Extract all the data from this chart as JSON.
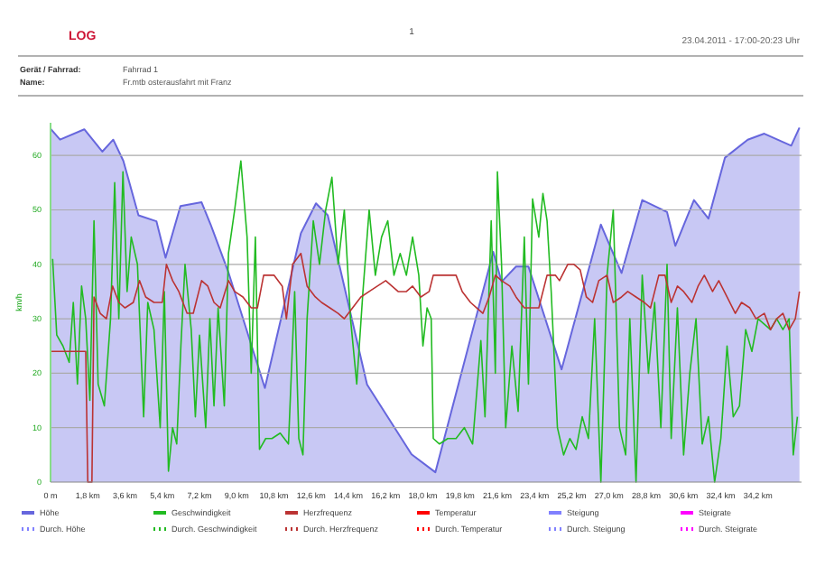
{
  "chart_data": {
    "type": "line",
    "title": "LOG",
    "annotations": [
      "1",
      "23.04.2011 - 17:00-20:23 Uhr",
      "Gerät / Fahrrad:",
      "Fahrrad 1",
      "Name:",
      "Fr.mtb osterausfahrt mit Franz"
    ],
    "ylabel": "km/h",
    "xlim": [
      0,
      36.3
    ],
    "ylim": [
      0,
      66
    ],
    "yticks": [
      0,
      10,
      20,
      30,
      40,
      50,
      60
    ],
    "xticks": [
      {
        "value": 0,
        "label": "0 m"
      },
      {
        "value": 1.8,
        "label": "1,8 km"
      },
      {
        "value": 3.6,
        "label": "3,6 km"
      },
      {
        "value": 5.4,
        "label": "5,4 km"
      },
      {
        "value": 7.2,
        "label": "7,2 km"
      },
      {
        "value": 9,
        "label": "9,0 km"
      },
      {
        "value": 10.8,
        "label": "10,8 km"
      },
      {
        "value": 12.6,
        "label": "12,6 km"
      },
      {
        "value": 14.4,
        "label": "14,4 km"
      },
      {
        "value": 16.2,
        "label": "16,2 km"
      },
      {
        "value": 18,
        "label": "18,0 km"
      },
      {
        "value": 19.8,
        "label": "19,8 km"
      },
      {
        "value": 21.6,
        "label": "21,6 km"
      },
      {
        "value": 23.4,
        "label": "23,4 km"
      },
      {
        "value": 25.2,
        "label": "25,2 km"
      },
      {
        "value": 27,
        "label": "27,0 km"
      },
      {
        "value": 28.8,
        "label": "28,8 km"
      },
      {
        "value": 30.6,
        "label": "30,6 km"
      },
      {
        "value": 32.4,
        "label": "32,4 km"
      },
      {
        "value": 34.2,
        "label": "34,2 km"
      }
    ],
    "grid": "y",
    "legend": "bottom",
    "series": [
      {
        "name": "Höhe",
        "type": "area",
        "color": "#6666dd",
        "x": [
          0,
          0.46,
          1.63,
          2.5,
          3.03,
          3.52,
          4.25,
          5.12,
          5.56,
          6.28,
          7.3,
          7.74,
          8.61,
          10.36,
          12.1,
          12.83,
          13.4,
          15.3,
          17.45,
          18.6,
          21.4,
          21.8,
          22.5,
          23.1,
          24.7,
          26.6,
          27.6,
          28.6,
          29.8,
          30.2,
          31.1,
          31.8,
          32.6,
          33.7,
          34.5,
          35.8,
          36.2
        ],
        "values": [
          64.9,
          62.9,
          64.8,
          60.7,
          62.9,
          59,
          49,
          47.9,
          41.2,
          50.7,
          51.4,
          47.3,
          38.4,
          17.3,
          45.7,
          51.2,
          49,
          17.9,
          5.1,
          1.8,
          42.3,
          36.8,
          39.6,
          39.6,
          20.7,
          47.3,
          38.4,
          51.8,
          49.6,
          43.4,
          51.8,
          48.4,
          59.6,
          62.9,
          64,
          61.8,
          65.1
        ]
      },
      {
        "name": "Geschwindigkeit",
        "color": "#22bb22",
        "x": [
          0.1,
          0.3,
          0.6,
          0.9,
          1.1,
          1.3,
          1.5,
          1.7,
          1.9,
          2.1,
          2.3,
          2.6,
          2.9,
          3.1,
          3.3,
          3.5,
          3.7,
          3.9,
          4.2,
          4.5,
          4.7,
          5.0,
          5.3,
          5.5,
          5.7,
          5.9,
          6.1,
          6.3,
          6.5,
          6.8,
          7.0,
          7.2,
          7.5,
          7.7,
          7.9,
          8.1,
          8.4,
          8.6,
          8.9,
          9.2,
          9.5,
          9.7,
          9.9,
          10.1,
          10.4,
          10.7,
          11.1,
          11.5,
          11.8,
          12.0,
          12.2,
          12.4,
          12.7,
          13.0,
          13.3,
          13.6,
          13.9,
          14.2,
          14.5,
          14.8,
          15.1,
          15.4,
          15.7,
          16.0,
          16.3,
          16.6,
          16.9,
          17.2,
          17.5,
          17.8,
          18.0,
          18.2,
          18.4,
          18.5,
          18.8,
          19.2,
          19.6,
          20.0,
          20.4,
          20.8,
          21.0,
          21.3,
          21.5,
          21.6,
          21.8,
          22.0,
          22.3,
          22.6,
          22.9,
          23.1,
          23.3,
          23.6,
          23.8,
          24.0,
          24.2,
          24.5,
          24.8,
          25.1,
          25.4,
          25.7,
          26.0,
          26.3,
          26.6,
          26.9,
          27.2,
          27.5,
          27.8,
          28.0,
          28.3,
          28.6,
          28.9,
          29.2,
          29.5,
          29.8,
          30.0,
          30.3,
          30.6,
          30.9,
          31.2,
          31.5,
          31.8,
          32.1,
          32.4,
          32.7,
          33.0,
          33.3,
          33.6,
          33.9,
          34.2,
          34.5,
          34.8,
          35.1,
          35.4,
          35.7,
          35.9,
          36.1
        ],
        "values": [
          41,
          27,
          25,
          22,
          33,
          18,
          36,
          30,
          15,
          48,
          18,
          14,
          30,
          55,
          30,
          57,
          35,
          45,
          40,
          12,
          33,
          28,
          10,
          35,
          2,
          10,
          7,
          25,
          40,
          28,
          12,
          27,
          10,
          30,
          14,
          32,
          14,
          42,
          50,
          59,
          45,
          20,
          45,
          6,
          8,
          8,
          9,
          7,
          35,
          8,
          5,
          30,
          48,
          40,
          50,
          56,
          40,
          50,
          30,
          18,
          35,
          50,
          38,
          45,
          48,
          38,
          42,
          38,
          45,
          38,
          25,
          32,
          30,
          8,
          7,
          8,
          8,
          10,
          7,
          26,
          12,
          48,
          20,
          57,
          40,
          10,
          25,
          13,
          45,
          18,
          52,
          45,
          53,
          48,
          35,
          10,
          5,
          8,
          6,
          12,
          8,
          30,
          0,
          38,
          50,
          10,
          5,
          30,
          0,
          38,
          20,
          33,
          10,
          40,
          8,
          32,
          5,
          20,
          30,
          7,
          12,
          0,
          8,
          25,
          12,
          14,
          28,
          24,
          30,
          29,
          28,
          30,
          28,
          30,
          5,
          12
        ]
      },
      {
        "name": "Herzfrequenz",
        "color": "#bb3333",
        "x": [
          0,
          1.7,
          1.8,
          2.0,
          2.1,
          2.4,
          2.7,
          3.0,
          3.3,
          3.6,
          4.0,
          4.3,
          4.6,
          5.0,
          5.4,
          5.6,
          5.9,
          6.2,
          6.6,
          6.9,
          7.3,
          7.6,
          7.9,
          8.2,
          8.6,
          8.9,
          9.3,
          9.7,
          10.0,
          10.3,
          10.8,
          11.2,
          11.4,
          11.7,
          12.1,
          12.4,
          12.8,
          13.1,
          13.5,
          13.9,
          14.2,
          14.6,
          15.0,
          15.4,
          15.8,
          16.2,
          16.5,
          16.8,
          17.2,
          17.5,
          17.9,
          18.3,
          18.5,
          18.9,
          19.3,
          19.6,
          19.9,
          20.3,
          20.6,
          20.9,
          21.2,
          21.5,
          21.8,
          22.2,
          22.5,
          22.9,
          23.3,
          23.6,
          24.0,
          24.4,
          24.6,
          25.0,
          25.3,
          25.6,
          25.9,
          26.2,
          26.5,
          26.9,
          27.2,
          27.6,
          27.9,
          28.3,
          28.7,
          29.0,
          29.4,
          29.7,
          30.0,
          30.3,
          30.6,
          31.0,
          31.3,
          31.6,
          32.0,
          32.3,
          32.7,
          33.1,
          33.4,
          33.8,
          34.1,
          34.5,
          34.8,
          35.1,
          35.4,
          35.7,
          36.0,
          36.2
        ],
        "values": [
          24,
          24,
          0,
          0,
          34,
          31,
          30,
          36,
          33,
          32,
          33,
          37,
          34,
          33,
          33,
          40,
          37,
          35,
          31,
          31,
          37,
          36,
          33,
          32,
          37,
          35,
          34,
          32,
          32,
          38,
          38,
          36,
          30,
          40,
          42,
          36,
          34,
          33,
          32,
          31,
          30,
          32,
          34,
          35,
          36,
          37,
          36,
          35,
          35,
          36,
          34,
          35,
          38,
          38,
          38,
          38,
          35,
          33,
          32,
          31,
          34,
          38,
          37,
          36,
          34,
          32,
          32,
          32,
          38,
          38,
          37,
          40,
          40,
          39,
          34,
          33,
          37,
          38,
          33,
          34,
          35,
          34,
          33,
          32,
          38,
          38,
          33,
          36,
          35,
          33,
          36,
          38,
          35,
          37,
          34,
          31,
          33,
          32,
          30,
          31,
          28,
          30,
          31,
          28,
          30,
          35
        ]
      },
      {
        "name": "Temperatur",
        "color": "#ff0000"
      },
      {
        "name": "Steigung",
        "color": "#8080ff"
      },
      {
        "name": "Steigrate",
        "color": "#ff00ff"
      },
      {
        "name": "Durch. Höhe",
        "color": "#8080ff",
        "line_style": "dotted"
      },
      {
        "name": "Durch. Geschwindigkeit",
        "color": "#22bb22",
        "line_style": "dotted"
      },
      {
        "name": "Durch. Herzfrequenz",
        "color": "#bb3333",
        "line_style": "dotted"
      },
      {
        "name": "Durch. Temperatur",
        "color": "#ff0000",
        "line_style": "dotted"
      },
      {
        "name": "Durch. Steigung",
        "color": "#8080ff",
        "line_style": "dotted"
      },
      {
        "name": "Durch. Steigrate",
        "color": "#ff00ff",
        "line_style": "dotted"
      }
    ]
  }
}
